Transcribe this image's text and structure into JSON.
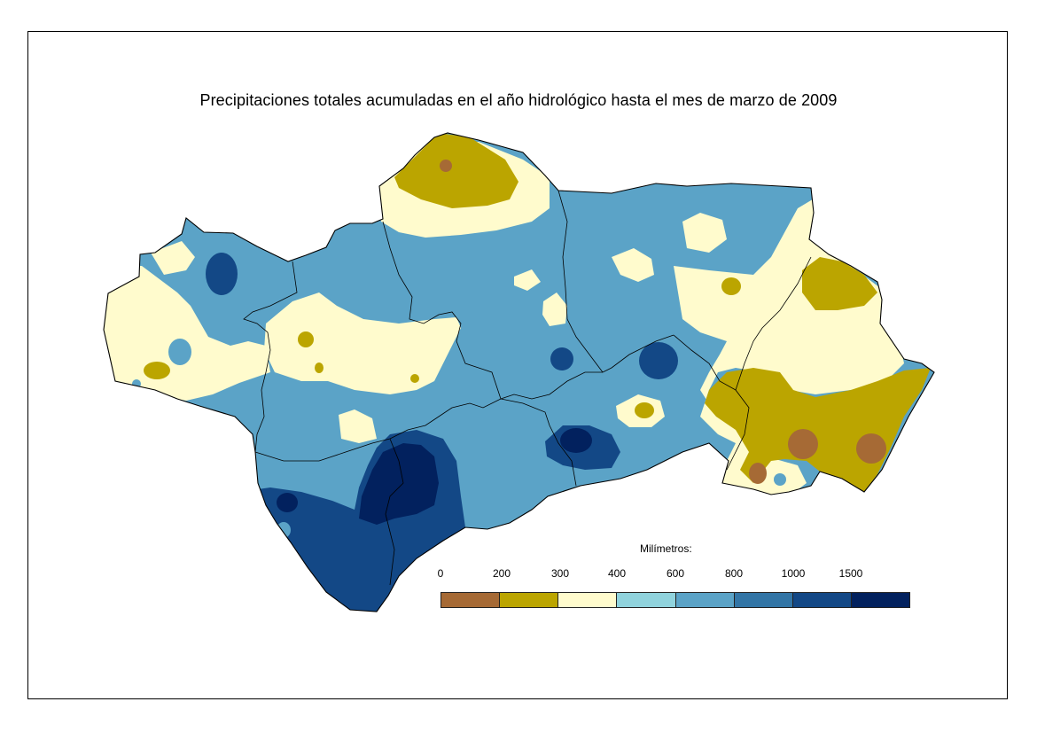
{
  "title": "Precipitaciones totales acumuladas en el año hidrológico hasta el mes de marzo de 2009",
  "legend": {
    "title": "Milímetros:",
    "ticks": [
      "0",
      "200",
      "300",
      "400",
      "600",
      "800",
      "1000",
      "1500"
    ],
    "classes": [
      {
        "range": "0-200",
        "color": "#A66A35"
      },
      {
        "range": "200-300",
        "color": "#BBA500"
      },
      {
        "range": "300-400",
        "color": "#FFFBCD"
      },
      {
        "range": "400-600",
        "color": "#90D3DD"
      },
      {
        "range": "600-800",
        "color": "#5BA3C7"
      },
      {
        "range": "800-1000",
        "color": "#3275A6"
      },
      {
        "range": "1000-1500",
        "color": "#134886"
      },
      {
        "range": ">1500",
        "color": "#02215E"
      }
    ]
  },
  "map": {
    "region": "Andalucía",
    "base_color": "#5BA3C7",
    "zones": [
      {
        "class": "300-400",
        "area": "Huelva west coast and Sierra"
      },
      {
        "class": "300-400",
        "area": "Sevilla central campiña"
      },
      {
        "class": "300-400",
        "area": "Jaén north"
      },
      {
        "class": "300-400",
        "area": "Granada east and Almería north"
      },
      {
        "class": "200-300",
        "area": "Jaén north (Sierra Morena)"
      },
      {
        "class": "200-300",
        "area": "Almería"
      },
      {
        "class": "200-300",
        "area": "Granada northeast"
      },
      {
        "class": "0-200",
        "area": "Almería east"
      },
      {
        "class": "1000-1500",
        "area": "Cádiz and Málaga west"
      },
      {
        "class": "1000-1500",
        "area": "Granada Sierra Nevada"
      },
      {
        "class": ">1500",
        "area": "Grazalema / Serranía de Ronda"
      }
    ]
  }
}
